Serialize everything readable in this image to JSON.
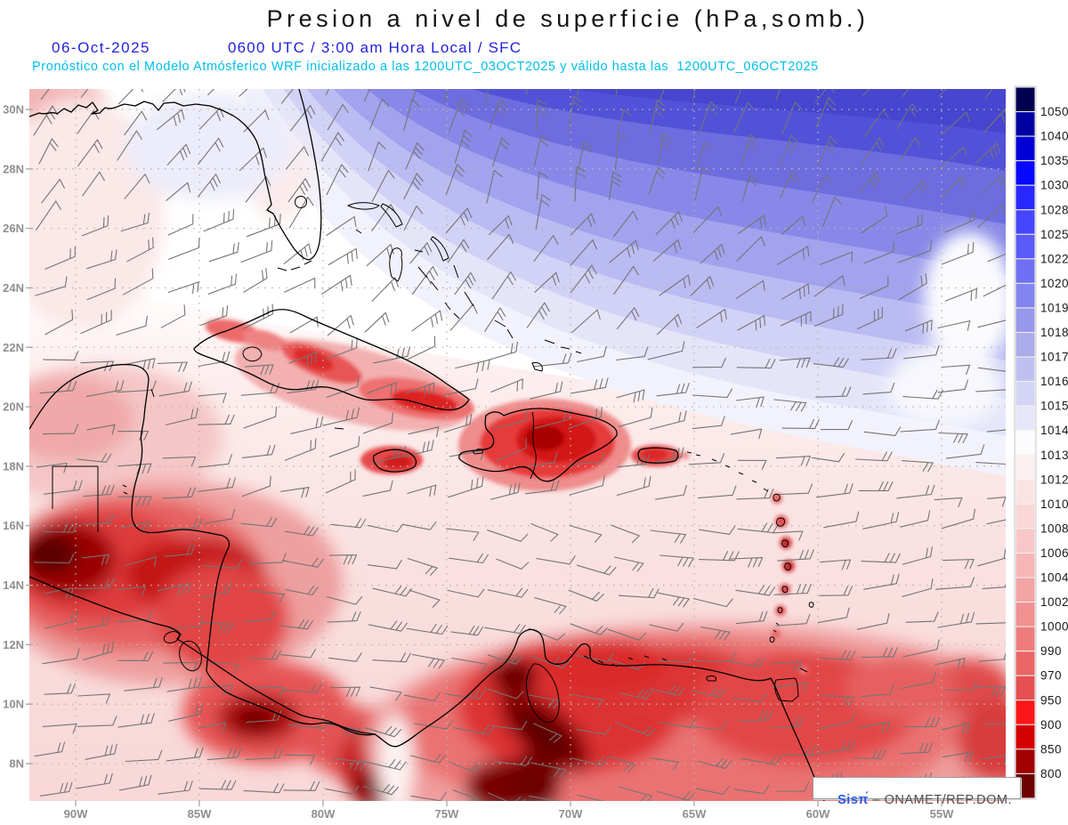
{
  "header": {
    "title": "Presion a nivel de superficie (hPa,somb.)",
    "date": "06-Oct-2025",
    "time_info": "0600 UTC / 3:00 am Hora Local / SFC",
    "model_info": "Pronóstico con el Modelo Atmósferico WRF inicializado a las 1200UTC_03OCT2025 y válido hasta las  1200UTC_06OCT2025"
  },
  "map": {
    "lat_labels": [
      "30N",
      "28N",
      "26N",
      "24N",
      "22N",
      "20N",
      "18N",
      "16N",
      "14N",
      "12N",
      "10N",
      "8N"
    ],
    "lon_labels": [
      "90W",
      "85W",
      "80W",
      "75W",
      "70W",
      "65W",
      "60W",
      "55W"
    ]
  },
  "colorbar": {
    "unit": "hPa",
    "labels": [
      "1050",
      "1040",
      "1035",
      "1030",
      "1028",
      "1025",
      "1022",
      "1020",
      "1019",
      "1018",
      "1017",
      "1016",
      "1015",
      "1014",
      "1013",
      "1012",
      "1010",
      "1008",
      "1006",
      "1004",
      "1002",
      "1000",
      "990",
      "970",
      "950",
      "900",
      "850",
      "800"
    ],
    "colors": [
      "#000050",
      "#0000a2",
      "#0000d6",
      "#0808ff",
      "#2828ff",
      "#4646ff",
      "#5a5af8",
      "#7070f4",
      "#8484f0",
      "#9898ec",
      "#acacea",
      "#c0c0f0",
      "#d4d4f5",
      "#e6e6fa",
      "#fcfcfe",
      "#fdf0f0",
      "#fce3e3",
      "#fad6d6",
      "#f8c8c8",
      "#f6b6b6",
      "#f4a4a4",
      "#f19090",
      "#ee7c7c",
      "#eb6666",
      "#e75050",
      "#fb1717",
      "#d40000",
      "#a00000",
      "#6e0000"
    ]
  },
  "watermark": {
    "brand": "Sisπ́",
    "org": " – ONAMET/REP.DOM."
  },
  "colors": {
    "header_blue": "#2222dd",
    "model_cyan": "#00bfe8",
    "brand_blue": "#2a5ae8",
    "grid_dot": "#b8b8b0",
    "axis_label_gray": "#8f8f8f",
    "barb_gray": "#757575",
    "coastline": "#000000",
    "high_pressure_deep_blue": "#4646d0",
    "low_pressure_dark_red": "#5c0000"
  }
}
